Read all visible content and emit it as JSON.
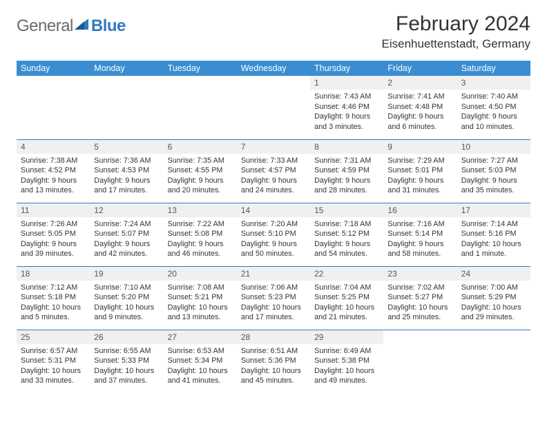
{
  "brand": {
    "name_part1": "General",
    "name_part2": "Blue",
    "logo_color": "#2f7bbf",
    "text_color": "#6a6a6a"
  },
  "header": {
    "month_title": "February 2024",
    "location": "Eisenhuettenstadt, Germany"
  },
  "colors": {
    "header_row_bg": "#3a8dd0",
    "header_row_text": "#ffffff",
    "border": "#2f7bbf",
    "daynum_bg": "#f0f0f0",
    "body_text": "#333333"
  },
  "day_headers": [
    "Sunday",
    "Monday",
    "Tuesday",
    "Wednesday",
    "Thursday",
    "Friday",
    "Saturday"
  ],
  "weeks": [
    [
      {
        "day": "",
        "sunrise": "",
        "sunset": "",
        "daylight": ""
      },
      {
        "day": "",
        "sunrise": "",
        "sunset": "",
        "daylight": ""
      },
      {
        "day": "",
        "sunrise": "",
        "sunset": "",
        "daylight": ""
      },
      {
        "day": "",
        "sunrise": "",
        "sunset": "",
        "daylight": ""
      },
      {
        "day": "1",
        "sunrise": "Sunrise: 7:43 AM",
        "sunset": "Sunset: 4:46 PM",
        "daylight": "Daylight: 9 hours and 3 minutes."
      },
      {
        "day": "2",
        "sunrise": "Sunrise: 7:41 AM",
        "sunset": "Sunset: 4:48 PM",
        "daylight": "Daylight: 9 hours and 6 minutes."
      },
      {
        "day": "3",
        "sunrise": "Sunrise: 7:40 AM",
        "sunset": "Sunset: 4:50 PM",
        "daylight": "Daylight: 9 hours and 10 minutes."
      }
    ],
    [
      {
        "day": "4",
        "sunrise": "Sunrise: 7:38 AM",
        "sunset": "Sunset: 4:52 PM",
        "daylight": "Daylight: 9 hours and 13 minutes."
      },
      {
        "day": "5",
        "sunrise": "Sunrise: 7:36 AM",
        "sunset": "Sunset: 4:53 PM",
        "daylight": "Daylight: 9 hours and 17 minutes."
      },
      {
        "day": "6",
        "sunrise": "Sunrise: 7:35 AM",
        "sunset": "Sunset: 4:55 PM",
        "daylight": "Daylight: 9 hours and 20 minutes."
      },
      {
        "day": "7",
        "sunrise": "Sunrise: 7:33 AM",
        "sunset": "Sunset: 4:57 PM",
        "daylight": "Daylight: 9 hours and 24 minutes."
      },
      {
        "day": "8",
        "sunrise": "Sunrise: 7:31 AM",
        "sunset": "Sunset: 4:59 PM",
        "daylight": "Daylight: 9 hours and 28 minutes."
      },
      {
        "day": "9",
        "sunrise": "Sunrise: 7:29 AM",
        "sunset": "Sunset: 5:01 PM",
        "daylight": "Daylight: 9 hours and 31 minutes."
      },
      {
        "day": "10",
        "sunrise": "Sunrise: 7:27 AM",
        "sunset": "Sunset: 5:03 PM",
        "daylight": "Daylight: 9 hours and 35 minutes."
      }
    ],
    [
      {
        "day": "11",
        "sunrise": "Sunrise: 7:26 AM",
        "sunset": "Sunset: 5:05 PM",
        "daylight": "Daylight: 9 hours and 39 minutes."
      },
      {
        "day": "12",
        "sunrise": "Sunrise: 7:24 AM",
        "sunset": "Sunset: 5:07 PM",
        "daylight": "Daylight: 9 hours and 42 minutes."
      },
      {
        "day": "13",
        "sunrise": "Sunrise: 7:22 AM",
        "sunset": "Sunset: 5:08 PM",
        "daylight": "Daylight: 9 hours and 46 minutes."
      },
      {
        "day": "14",
        "sunrise": "Sunrise: 7:20 AM",
        "sunset": "Sunset: 5:10 PM",
        "daylight": "Daylight: 9 hours and 50 minutes."
      },
      {
        "day": "15",
        "sunrise": "Sunrise: 7:18 AM",
        "sunset": "Sunset: 5:12 PM",
        "daylight": "Daylight: 9 hours and 54 minutes."
      },
      {
        "day": "16",
        "sunrise": "Sunrise: 7:16 AM",
        "sunset": "Sunset: 5:14 PM",
        "daylight": "Daylight: 9 hours and 58 minutes."
      },
      {
        "day": "17",
        "sunrise": "Sunrise: 7:14 AM",
        "sunset": "Sunset: 5:16 PM",
        "daylight": "Daylight: 10 hours and 1 minute."
      }
    ],
    [
      {
        "day": "18",
        "sunrise": "Sunrise: 7:12 AM",
        "sunset": "Sunset: 5:18 PM",
        "daylight": "Daylight: 10 hours and 5 minutes."
      },
      {
        "day": "19",
        "sunrise": "Sunrise: 7:10 AM",
        "sunset": "Sunset: 5:20 PM",
        "daylight": "Daylight: 10 hours and 9 minutes."
      },
      {
        "day": "20",
        "sunrise": "Sunrise: 7:08 AM",
        "sunset": "Sunset: 5:21 PM",
        "daylight": "Daylight: 10 hours and 13 minutes."
      },
      {
        "day": "21",
        "sunrise": "Sunrise: 7:06 AM",
        "sunset": "Sunset: 5:23 PM",
        "daylight": "Daylight: 10 hours and 17 minutes."
      },
      {
        "day": "22",
        "sunrise": "Sunrise: 7:04 AM",
        "sunset": "Sunset: 5:25 PM",
        "daylight": "Daylight: 10 hours and 21 minutes."
      },
      {
        "day": "23",
        "sunrise": "Sunrise: 7:02 AM",
        "sunset": "Sunset: 5:27 PM",
        "daylight": "Daylight: 10 hours and 25 minutes."
      },
      {
        "day": "24",
        "sunrise": "Sunrise: 7:00 AM",
        "sunset": "Sunset: 5:29 PM",
        "daylight": "Daylight: 10 hours and 29 minutes."
      }
    ],
    [
      {
        "day": "25",
        "sunrise": "Sunrise: 6:57 AM",
        "sunset": "Sunset: 5:31 PM",
        "daylight": "Daylight: 10 hours and 33 minutes."
      },
      {
        "day": "26",
        "sunrise": "Sunrise: 6:55 AM",
        "sunset": "Sunset: 5:33 PM",
        "daylight": "Daylight: 10 hours and 37 minutes."
      },
      {
        "day": "27",
        "sunrise": "Sunrise: 6:53 AM",
        "sunset": "Sunset: 5:34 PM",
        "daylight": "Daylight: 10 hours and 41 minutes."
      },
      {
        "day": "28",
        "sunrise": "Sunrise: 6:51 AM",
        "sunset": "Sunset: 5:36 PM",
        "daylight": "Daylight: 10 hours and 45 minutes."
      },
      {
        "day": "29",
        "sunrise": "Sunrise: 6:49 AM",
        "sunset": "Sunset: 5:38 PM",
        "daylight": "Daylight: 10 hours and 49 minutes."
      },
      {
        "day": "",
        "sunrise": "",
        "sunset": "",
        "daylight": ""
      },
      {
        "day": "",
        "sunrise": "",
        "sunset": "",
        "daylight": ""
      }
    ]
  ]
}
